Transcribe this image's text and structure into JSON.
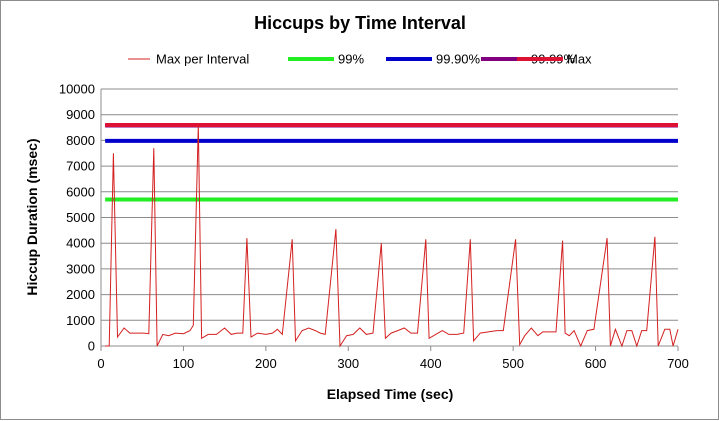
{
  "chart_data": {
    "type": "line",
    "title": "Hiccups by Time Interval",
    "xlabel": "Elapsed Time (sec)",
    "ylabel": "Hiccup Duration (msec)",
    "xlim": [
      0,
      700
    ],
    "ylim": [
      0,
      10000
    ],
    "xticks": [
      0,
      100,
      200,
      300,
      400,
      500,
      600,
      700
    ],
    "yticks": [
      0,
      1000,
      2000,
      3000,
      4000,
      5000,
      6000,
      7000,
      8000,
      9000,
      10000
    ],
    "grid": true,
    "legend_position": "top",
    "series": [
      {
        "name": "Max per Interval",
        "color": "#d42020",
        "style": "thin",
        "points": [
          [
            5,
            0
          ],
          [
            10,
            0
          ],
          [
            15,
            7500
          ],
          [
            20,
            350
          ],
          [
            28,
            700
          ],
          [
            35,
            500
          ],
          [
            45,
            500
          ],
          [
            52,
            500
          ],
          [
            58,
            480
          ],
          [
            64,
            7700
          ],
          [
            68,
            0
          ],
          [
            75,
            450
          ],
          [
            82,
            400
          ],
          [
            90,
            500
          ],
          [
            100,
            480
          ],
          [
            108,
            600
          ],
          [
            112,
            800
          ],
          [
            118,
            8600
          ],
          [
            122,
            300
          ],
          [
            130,
            450
          ],
          [
            140,
            450
          ],
          [
            150,
            700
          ],
          [
            158,
            450
          ],
          [
            165,
            500
          ],
          [
            172,
            500
          ],
          [
            177,
            4200
          ],
          [
            182,
            350
          ],
          [
            190,
            500
          ],
          [
            200,
            450
          ],
          [
            208,
            500
          ],
          [
            214,
            650
          ],
          [
            220,
            450
          ],
          [
            232,
            4150
          ],
          [
            236,
            200
          ],
          [
            244,
            600
          ],
          [
            252,
            700
          ],
          [
            260,
            600
          ],
          [
            266,
            500
          ],
          [
            272,
            450
          ],
          [
            285,
            4550
          ],
          [
            290,
            0
          ],
          [
            298,
            400
          ],
          [
            306,
            450
          ],
          [
            314,
            700
          ],
          [
            322,
            450
          ],
          [
            330,
            500
          ],
          [
            340,
            4000
          ],
          [
            345,
            300
          ],
          [
            352,
            500
          ],
          [
            360,
            600
          ],
          [
            368,
            700
          ],
          [
            376,
            500
          ],
          [
            384,
            500
          ],
          [
            394,
            4150
          ],
          [
            398,
            300
          ],
          [
            406,
            450
          ],
          [
            414,
            600
          ],
          [
            422,
            450
          ],
          [
            432,
            450
          ],
          [
            440,
            500
          ],
          [
            448,
            4150
          ],
          [
            452,
            200
          ],
          [
            460,
            500
          ],
          [
            470,
            550
          ],
          [
            480,
            600
          ],
          [
            488,
            600
          ],
          [
            503,
            4150
          ],
          [
            508,
            50
          ],
          [
            514,
            400
          ],
          [
            522,
            700
          ],
          [
            530,
            400
          ],
          [
            536,
            550
          ],
          [
            544,
            550
          ],
          [
            552,
            550
          ],
          [
            560,
            4100
          ],
          [
            563,
            500
          ],
          [
            568,
            400
          ],
          [
            574,
            600
          ],
          [
            582,
            0
          ],
          [
            590,
            600
          ],
          [
            598,
            650
          ],
          [
            614,
            4200
          ],
          [
            618,
            0
          ],
          [
            624,
            650
          ],
          [
            632,
            0
          ],
          [
            638,
            600
          ],
          [
            644,
            600
          ],
          [
            650,
            0
          ],
          [
            656,
            600
          ],
          [
            662,
            600
          ],
          [
            672,
            4250
          ],
          [
            676,
            0
          ],
          [
            684,
            650
          ],
          [
            690,
            650
          ],
          [
            694,
            0
          ],
          [
            700,
            650
          ]
        ]
      },
      {
        "name": "99%",
        "color": "#22ee22",
        "style": "thick",
        "value": 5700
      },
      {
        "name": "99.90%",
        "color": "#0000cc",
        "style": "thick",
        "value": 7980
      },
      {
        "name": "99.99%",
        "color": "#800080",
        "style": "thick",
        "value": 8580
      },
      {
        "name": "Max",
        "color": "#dd1133",
        "style": "thick",
        "value": 8600
      }
    ]
  }
}
